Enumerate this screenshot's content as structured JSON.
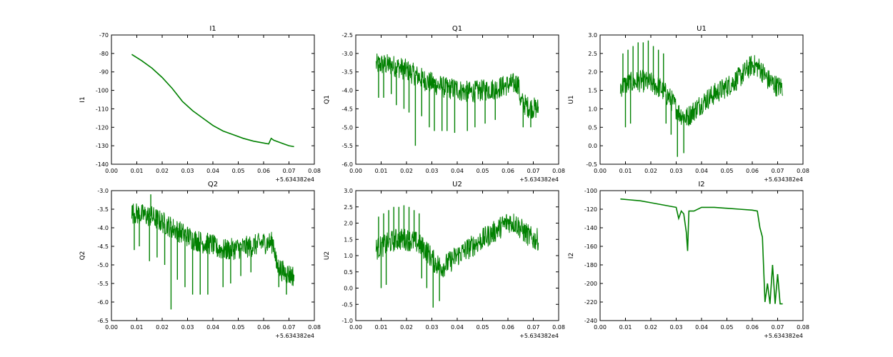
{
  "chart_data": [
    {
      "type": "line",
      "title": "I1",
      "xlabel": "",
      "ylabel": "I1",
      "xlim": [
        0.0,
        0.08
      ],
      "ylim": [
        -140,
        -70
      ],
      "xticks": [
        "0.00",
        "0.01",
        "0.02",
        "0.03",
        "0.04",
        "0.05",
        "0.06",
        "0.07",
        "0.08"
      ],
      "yticks": [
        "-140",
        "-130",
        "-120",
        "-110",
        "-100",
        "-90",
        "-80",
        "-70"
      ],
      "x_offset_label": "+5.634382e4",
      "series": [
        {
          "name": "I1",
          "color": "#008000",
          "x": [
            0.008,
            0.012,
            0.016,
            0.02,
            0.024,
            0.028,
            0.032,
            0.036,
            0.04,
            0.044,
            0.048,
            0.052,
            0.056,
            0.06,
            0.062,
            0.063,
            0.064,
            0.066,
            0.068,
            0.07,
            0.072
          ],
          "y": [
            -80.5,
            -84,
            -88,
            -93,
            -99,
            -106,
            -111,
            -115,
            -119,
            -122,
            -124,
            -126,
            -127.5,
            -128.5,
            -129,
            -126,
            -127,
            -128,
            -129,
            -130,
            -130.5
          ]
        }
      ]
    },
    {
      "type": "line",
      "title": "Q1",
      "xlabel": "",
      "ylabel": "Q1",
      "xlim": [
        0.0,
        0.08
      ],
      "ylim": [
        -6.0,
        -2.5
      ],
      "xticks": [
        "0.00",
        "0.01",
        "0.02",
        "0.03",
        "0.04",
        "0.05",
        "0.06",
        "0.07",
        "0.08"
      ],
      "yticks": [
        "-6.0",
        "-5.5",
        "-5.0",
        "-4.5",
        "-4.0",
        "-3.5",
        "-3.0",
        "-2.5"
      ],
      "x_offset_label": "+5.634382e4",
      "series": [
        {
          "name": "Q1",
          "color": "#008000",
          "x": [
            0.008,
            0.012,
            0.016,
            0.02,
            0.024,
            0.028,
            0.032,
            0.036,
            0.04,
            0.041,
            0.045,
            0.05,
            0.055,
            0.06,
            0.064,
            0.065,
            0.068,
            0.072
          ],
          "y": [
            -3.3,
            -3.3,
            -3.35,
            -3.45,
            -3.6,
            -3.75,
            -3.85,
            -3.95,
            -3.95,
            -4.0,
            -4.05,
            -4.0,
            -3.95,
            -3.85,
            -3.8,
            -4.3,
            -4.45,
            -4.5
          ],
          "spread": 0.3,
          "spikes": [
            [
              0.009,
              -4.2
            ],
            [
              0.011,
              -4.2
            ],
            [
              0.014,
              -4.1
            ],
            [
              0.016,
              -4.4
            ],
            [
              0.019,
              -4.5
            ],
            [
              0.021,
              -4.6
            ],
            [
              0.0235,
              -5.5
            ],
            [
              0.026,
              -4.7
            ],
            [
              0.029,
              -5.0
            ],
            [
              0.031,
              -5.1
            ],
            [
              0.034,
              -5.1
            ],
            [
              0.036,
              -5.1
            ],
            [
              0.039,
              -5.15
            ],
            [
              0.044,
              -5.1
            ],
            [
              0.047,
              -5.0
            ],
            [
              0.051,
              -4.9
            ],
            [
              0.055,
              -4.8
            ],
            [
              0.066,
              -5.0
            ],
            [
              0.069,
              -5.0
            ]
          ]
        }
      ]
    },
    {
      "type": "line",
      "title": "U1",
      "xlabel": "",
      "ylabel": "U1",
      "xlim": [
        0.0,
        0.08
      ],
      "ylim": [
        -0.5,
        3.0
      ],
      "xticks": [
        "0.00",
        "0.01",
        "0.02",
        "0.03",
        "0.04",
        "0.05",
        "0.06",
        "0.07",
        "0.08"
      ],
      "yticks": [
        "-0.5",
        "0.0",
        "0.5",
        "1.0",
        "1.5",
        "2.0",
        "2.5",
        "3.0"
      ],
      "x_offset_label": "+5.634382e4",
      "series": [
        {
          "name": "U1",
          "color": "#008000",
          "x": [
            0.008,
            0.012,
            0.016,
            0.02,
            0.024,
            0.028,
            0.031,
            0.034,
            0.037,
            0.04,
            0.041,
            0.045,
            0.05,
            0.055,
            0.06,
            0.063,
            0.066,
            0.07,
            0.072
          ],
          "y": [
            1.6,
            1.7,
            1.75,
            1.7,
            1.55,
            1.25,
            0.9,
            0.75,
            0.95,
            1.15,
            1.2,
            1.4,
            1.6,
            1.85,
            2.2,
            2.1,
            1.8,
            1.6,
            1.6
          ],
          "spread": 0.3,
          "spikes": [
            [
              0.009,
              2.5
            ],
            [
              0.011,
              2.6
            ],
            [
              0.013,
              2.7
            ],
            [
              0.015,
              2.8
            ],
            [
              0.017,
              2.8
            ],
            [
              0.019,
              2.85
            ],
            [
              0.021,
              2.7
            ],
            [
              0.023,
              2.6
            ],
            [
              0.025,
              2.5
            ],
            [
              0.0305,
              -0.3
            ],
            [
              0.033,
              -0.2
            ],
            [
              0.026,
              0.6
            ],
            [
              0.028,
              0.3
            ],
            [
              0.01,
              0.5
            ],
            [
              0.012,
              0.6
            ]
          ]
        }
      ]
    },
    {
      "type": "line",
      "title": "Q2",
      "xlabel": "",
      "ylabel": "Q2",
      "xlim": [
        0.0,
        0.08
      ],
      "ylim": [
        -6.5,
        -3.0
      ],
      "xticks": [
        "0.00",
        "0.01",
        "0.02",
        "0.03",
        "0.04",
        "0.05",
        "0.06",
        "0.07",
        "0.08"
      ],
      "yticks": [
        "-6.5",
        "-6.0",
        "-5.5",
        "-5.0",
        "-4.5",
        "-4.0",
        "-3.5",
        "-3.0"
      ],
      "x_offset_label": "+5.634382e4",
      "series": [
        {
          "name": "Q2",
          "color": "#008000",
          "x": [
            0.008,
            0.012,
            0.016,
            0.02,
            0.024,
            0.028,
            0.032,
            0.036,
            0.04,
            0.041,
            0.045,
            0.05,
            0.055,
            0.06,
            0.064,
            0.065,
            0.068,
            0.072
          ],
          "y": [
            -3.6,
            -3.65,
            -3.7,
            -3.85,
            -4.0,
            -4.15,
            -4.3,
            -4.4,
            -4.45,
            -4.55,
            -4.6,
            -4.55,
            -4.5,
            -4.4,
            -4.4,
            -5.0,
            -5.2,
            -5.3
          ],
          "spread": 0.3,
          "spikes": [
            [
              0.0155,
              -3.1
            ],
            [
              0.009,
              -4.6
            ],
            [
              0.011,
              -4.5
            ],
            [
              0.015,
              -4.9
            ],
            [
              0.0235,
              -6.2
            ],
            [
              0.018,
              -4.8
            ],
            [
              0.021,
              -5.0
            ],
            [
              0.026,
              -5.4
            ],
            [
              0.029,
              -5.6
            ],
            [
              0.032,
              -5.8
            ],
            [
              0.035,
              -5.8
            ],
            [
              0.038,
              -5.8
            ],
            [
              0.044,
              -5.6
            ],
            [
              0.047,
              -5.5
            ],
            [
              0.051,
              -5.3
            ],
            [
              0.055,
              -5.2
            ],
            [
              0.066,
              -5.6
            ],
            [
              0.069,
              -5.8
            ]
          ]
        }
      ]
    },
    {
      "type": "line",
      "title": "U2",
      "xlabel": "",
      "ylabel": "U2",
      "xlim": [
        0.0,
        0.08
      ],
      "ylim": [
        -1.0,
        3.0
      ],
      "xticks": [
        "0.00",
        "0.01",
        "0.02",
        "0.03",
        "0.04",
        "0.05",
        "0.06",
        "0.07",
        "0.08"
      ],
      "yticks": [
        "-1.0",
        "-0.5",
        "0.0",
        "0.5",
        "1.0",
        "1.5",
        "2.0",
        "2.5",
        "3.0"
      ],
      "x_offset_label": "+5.634382e4",
      "series": [
        {
          "name": "U2",
          "color": "#008000",
          "x": [
            0.008,
            0.012,
            0.016,
            0.02,
            0.024,
            0.028,
            0.031,
            0.034,
            0.037,
            0.04,
            0.041,
            0.045,
            0.05,
            0.055,
            0.06,
            0.063,
            0.066,
            0.07,
            0.072
          ],
          "y": [
            1.2,
            1.35,
            1.5,
            1.5,
            1.4,
            1.15,
            0.8,
            0.65,
            0.8,
            1.0,
            1.05,
            1.25,
            1.5,
            1.75,
            2.05,
            2.0,
            1.75,
            1.5,
            1.5
          ],
          "spread": 0.35,
          "spikes": [
            [
              0.009,
              2.2
            ],
            [
              0.011,
              2.3
            ],
            [
              0.013,
              2.4
            ],
            [
              0.015,
              2.5
            ],
            [
              0.017,
              2.5
            ],
            [
              0.019,
              2.55
            ],
            [
              0.021,
              2.5
            ],
            [
              0.023,
              2.4
            ],
            [
              0.025,
              2.3
            ],
            [
              0.0305,
              -0.6
            ],
            [
              0.033,
              -0.4
            ],
            [
              0.026,
              0.3
            ],
            [
              0.028,
              0.0
            ],
            [
              0.01,
              0.0
            ],
            [
              0.012,
              0.1
            ]
          ]
        }
      ]
    },
    {
      "type": "line",
      "title": "I2",
      "xlabel": "",
      "ylabel": "I2",
      "xlim": [
        0.0,
        0.08
      ],
      "ylim": [
        -240,
        -100
      ],
      "xticks": [
        "0.00",
        "0.01",
        "0.02",
        "0.03",
        "0.04",
        "0.05",
        "0.06",
        "0.07",
        "0.08"
      ],
      "yticks": [
        "-240",
        "-220",
        "-200",
        "-180",
        "-160",
        "-140",
        "-120",
        "-100"
      ],
      "x_offset_label": "+5.634382e4",
      "series": [
        {
          "name": "I2",
          "color": "#008000",
          "x": [
            0.008,
            0.012,
            0.016,
            0.02,
            0.024,
            0.028,
            0.03,
            0.031,
            0.032,
            0.033,
            0.034,
            0.0345,
            0.035,
            0.037,
            0.04,
            0.045,
            0.05,
            0.055,
            0.06,
            0.062,
            0.063,
            0.064,
            0.065,
            0.066,
            0.067,
            0.068,
            0.069,
            0.07,
            0.071,
            0.072
          ],
          "y": [
            -109,
            -110,
            -111,
            -113,
            -115,
            -117,
            -118,
            -130,
            -122,
            -125,
            -145,
            -165,
            -122,
            -122,
            -118,
            -118,
            -119,
            -120,
            -121,
            -122,
            -140,
            -150,
            -220,
            -200,
            -222,
            -180,
            -222,
            -190,
            -222,
            -222
          ]
        }
      ]
    }
  ]
}
